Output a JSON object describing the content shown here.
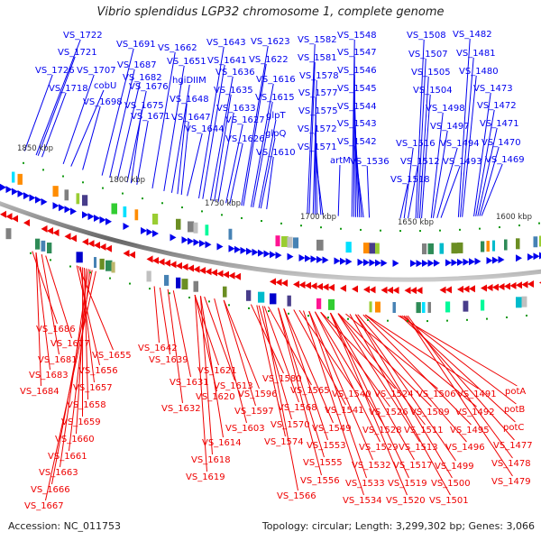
{
  "title": "Vibrio splendidus LGP32 chromosome 1, complete genome",
  "footer": {
    "accession": "Accession: NC_011753",
    "summary": "Topology: circular; Length: 3,299,302 bp; Genes: 3,066"
  },
  "colors": {
    "forward": "#0000ee",
    "reverse": "#ee0000",
    "backbone": "#808080",
    "marker": "#119911",
    "features": [
      "#00bbcc",
      "#ff1493",
      "#ff8c00",
      "#2e8b57",
      "#9acd32",
      "#4682b4",
      "#808080",
      "#00e0ff",
      "#483d8b",
      "#32cd32",
      "#00fa9a",
      "#c0c0c0",
      "#bdb76b",
      "#6b8e23",
      "#0000cd"
    ]
  },
  "scale_ticks": [
    {
      "label": "1850 kbp",
      "kbp": 1850
    },
    {
      "label": "1800 kbp",
      "kbp": 1800
    },
    {
      "label": "1750 kbp",
      "kbp": 1750
    },
    {
      "label": "1700 kbp",
      "kbp": 1700
    },
    {
      "label": "1650 kbp",
      "kbp": 1650
    },
    {
      "label": "1600 kbp",
      "kbp": 1600
    }
  ],
  "forward_genes": [
    {
      "label": "VS_1722",
      "kbp": 1846
    },
    {
      "label": "VS_1721",
      "kbp": 1845
    },
    {
      "label": "VS_1726",
      "kbp": 1852
    },
    {
      "label": "VS_1718",
      "kbp": 1843
    },
    {
      "label": "VS_1707",
      "kbp": 1832
    },
    {
      "label": "cobU",
      "kbp": 1828
    },
    {
      "label": "VS_1698",
      "kbp": 1822
    },
    {
      "label": "VS_1691",
      "kbp": 1812
    },
    {
      "label": "VS_1687",
      "kbp": 1808
    },
    {
      "label": "VS_1682",
      "kbp": 1804
    },
    {
      "label": "VS_1676",
      "kbp": 1799
    },
    {
      "label": "VS_1675",
      "kbp": 1797
    },
    {
      "label": "VS_1671",
      "kbp": 1794
    },
    {
      "label": "VS_1662",
      "kbp": 1786
    },
    {
      "label": "VS_1651",
      "kbp": 1780
    },
    {
      "label": "hgiDIIM",
      "kbp": 1776
    },
    {
      "label": "VS_1648",
      "kbp": 1773
    },
    {
      "label": "VS_1647",
      "kbp": 1771
    },
    {
      "label": "VS_1644",
      "kbp": 1768
    },
    {
      "label": "VS_1643",
      "kbp": 1762
    },
    {
      "label": "VS_1641",
      "kbp": 1760
    },
    {
      "label": "VS_1636",
      "kbp": 1756
    },
    {
      "label": "VS_1635",
      "kbp": 1754
    },
    {
      "label": "VS_1633",
      "kbp": 1752
    },
    {
      "label": "VS_1627",
      "kbp": 1748
    },
    {
      "label": "VS_1626",
      "kbp": 1746
    },
    {
      "label": "VS_1623",
      "kbp": 1740
    },
    {
      "label": "VS_1622",
      "kbp": 1739
    },
    {
      "label": "VS_1616",
      "kbp": 1735
    },
    {
      "label": "VS_1615",
      "kbp": 1734
    },
    {
      "label": "glpT",
      "kbp": 1731
    },
    {
      "label": "glpQ",
      "kbp": 1730
    },
    {
      "label": "VS_1610",
      "kbp": 1727
    },
    {
      "label": "VS_1582",
      "kbp": 1706
    },
    {
      "label": "VS_1581",
      "kbp": 1705
    },
    {
      "label": "VS_1578",
      "kbp": 1703
    },
    {
      "label": "VS_1577",
      "kbp": 1702
    },
    {
      "label": "VS_1575",
      "kbp": 1701
    },
    {
      "label": "VS_1572",
      "kbp": 1699
    },
    {
      "label": "VS_1571",
      "kbp": 1698
    },
    {
      "label": "VS_1548",
      "kbp": 1683
    },
    {
      "label": "VS_1547",
      "kbp": 1682
    },
    {
      "label": "VS_1546",
      "kbp": 1681
    },
    {
      "label": "VS_1545",
      "kbp": 1680
    },
    {
      "label": "VS_1544",
      "kbp": 1679
    },
    {
      "label": "VS_1543",
      "kbp": 1678
    },
    {
      "label": "VS_1542",
      "kbp": 1677
    },
    {
      "label": "artM",
      "kbp": 1690
    },
    {
      "label": "VS_1536",
      "kbp": 1674
    },
    {
      "label": "VS_1508",
      "kbp": 1650
    },
    {
      "label": "VS_1507",
      "kbp": 1649
    },
    {
      "label": "VS_1505",
      "kbp": 1648
    },
    {
      "label": "VS_1504",
      "kbp": 1647
    },
    {
      "label": "VS_1516",
      "kbp": 1656
    },
    {
      "label": "VS_1512",
      "kbp": 1654
    },
    {
      "label": "VS_1518",
      "kbp": 1658
    },
    {
      "label": "VS_1498",
      "kbp": 1642
    },
    {
      "label": "VS_1497",
      "kbp": 1641
    },
    {
      "label": "VS_1494",
      "kbp": 1639
    },
    {
      "label": "VS_1493",
      "kbp": 1637
    },
    {
      "label": "VS_1482",
      "kbp": 1628
    },
    {
      "label": "VS_1481",
      "kbp": 1627
    },
    {
      "label": "VS_1480",
      "kbp": 1626
    },
    {
      "label": "VS_1473",
      "kbp": 1620
    },
    {
      "label": "VS_1472",
      "kbp": 1619
    },
    {
      "label": "VS_1471",
      "kbp": 1618
    },
    {
      "label": "VS_1470",
      "kbp": 1617
    },
    {
      "label": "VS_1469",
      "kbp": 1616
    }
  ],
  "reverse_genes": [
    {
      "label": "VS_1686",
      "kbp": 1848
    },
    {
      "label": "VS_1677",
      "kbp": 1842
    },
    {
      "label": "VS_1681",
      "kbp": 1845
    },
    {
      "label": "VS_1683",
      "kbp": 1846
    },
    {
      "label": "VS_1684",
      "kbp": 1847
    },
    {
      "label": "VS_1655",
      "kbp": 1826
    },
    {
      "label": "VS_1656",
      "kbp": 1825
    },
    {
      "label": "VS_1657",
      "kbp": 1824
    },
    {
      "label": "VS_1658",
      "kbp": 1823
    },
    {
      "label": "VS_1659",
      "kbp": 1822
    },
    {
      "label": "VS_1660",
      "kbp": 1821
    },
    {
      "label": "VS_1661",
      "kbp": 1820
    },
    {
      "label": "VS_1663",
      "kbp": 1819
    },
    {
      "label": "VS_1666",
      "kbp": 1818
    },
    {
      "label": "VS_1667",
      "kbp": 1817
    },
    {
      "label": "VS_1642",
      "kbp": 1785
    },
    {
      "label": "VS_1639",
      "kbp": 1783
    },
    {
      "label": "VS_1631",
      "kbp": 1777
    },
    {
      "label": "VS_1632",
      "kbp": 1778
    },
    {
      "label": "VS_1621",
      "kbp": 1765
    },
    {
      "label": "VS_1613",
      "kbp": 1761
    },
    {
      "label": "VS_1620",
      "kbp": 1764
    },
    {
      "label": "VS_1614",
      "kbp": 1762
    },
    {
      "label": "VS_1618",
      "kbp": 1763
    },
    {
      "label": "VS_1619",
      "kbp": 1764
    },
    {
      "label": "VS_1596",
      "kbp": 1750
    },
    {
      "label": "VS_1597",
      "kbp": 1751
    },
    {
      "label": "VS_1603",
      "kbp": 1754
    },
    {
      "label": "VS_1580",
      "kbp": 1736
    },
    {
      "label": "VS_1568",
      "kbp": 1730
    },
    {
      "label": "VS_1570",
      "kbp": 1731
    },
    {
      "label": "VS_1574",
      "kbp": 1733
    },
    {
      "label": "VS_1565",
      "kbp": 1728
    },
    {
      "label": "VS_1566",
      "kbp": 1729
    },
    {
      "label": "VS_1549",
      "kbp": 1719
    },
    {
      "label": "VS_1553",
      "kbp": 1720
    },
    {
      "label": "VS_1555",
      "kbp": 1721
    },
    {
      "label": "VS_1556",
      "kbp": 1722
    },
    {
      "label": "VS_1540",
      "kbp": 1712
    },
    {
      "label": "VS_1541",
      "kbp": 1713
    },
    {
      "label": "VS_1532",
      "kbp": 1706
    },
    {
      "label": "VS_1533",
      "kbp": 1707
    },
    {
      "label": "VS_1534",
      "kbp": 1708
    },
    {
      "label": "VS_1524",
      "kbp": 1700
    },
    {
      "label": "VS_1526",
      "kbp": 1701
    },
    {
      "label": "VS_1528",
      "kbp": 1702
    },
    {
      "label": "VS_1529",
      "kbp": 1703
    },
    {
      "label": "VS_1506",
      "kbp": 1688
    },
    {
      "label": "VS_1509",
      "kbp": 1690
    },
    {
      "label": "VS_1511",
      "kbp": 1691
    },
    {
      "label": "VS_1513",
      "kbp": 1692
    },
    {
      "label": "VS_1517",
      "kbp": 1694
    },
    {
      "label": "VS_1519",
      "kbp": 1695
    },
    {
      "label": "VS_1520",
      "kbp": 1696
    },
    {
      "label": "VS_1491",
      "kbp": 1676
    },
    {
      "label": "VS_1492",
      "kbp": 1677
    },
    {
      "label": "VS_1495",
      "kbp": 1679
    },
    {
      "label": "VS_1496",
      "kbp": 1680
    },
    {
      "label": "VS_1499",
      "kbp": 1682
    },
    {
      "label": "VS_1500",
      "kbp": 1683
    },
    {
      "label": "VS_1501",
      "kbp": 1684
    },
    {
      "label": "potA",
      "kbp": 1660
    },
    {
      "label": "potB",
      "kbp": 1659
    },
    {
      "label": "potC",
      "kbp": 1658
    },
    {
      "label": "VS_1477",
      "kbp": 1657
    },
    {
      "label": "VS_1478",
      "kbp": 1656
    },
    {
      "label": "VS_1479",
      "kbp": 1655
    }
  ]
}
